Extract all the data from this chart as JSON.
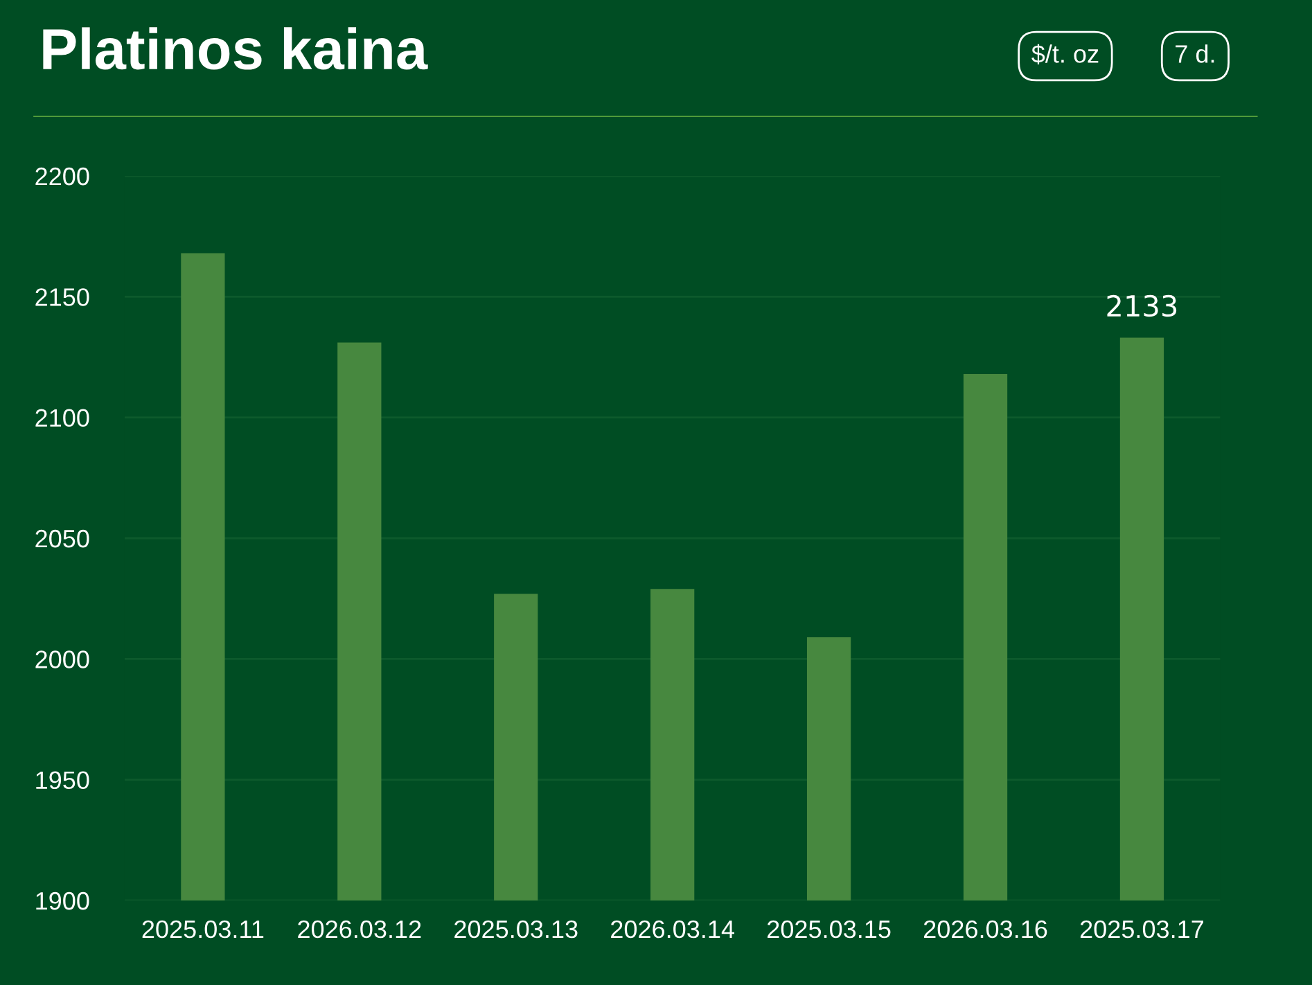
{
  "chart_data": {
    "type": "bar",
    "title": "Platinos kaina",
    "annotations": [
      "$/t. oz",
      "7 d."
    ],
    "categories": [
      "2025.03.11",
      "2026.03.12",
      "2025.03.13",
      "2026.03.14",
      "2025.03.15",
      "2026.03.16",
      "2025.03.17"
    ],
    "values": [
      2168,
      2131,
      2027,
      2029,
      2009,
      2118,
      2133
    ],
    "value_labels": [
      null,
      null,
      null,
      null,
      null,
      null,
      "2133"
    ],
    "color": "#47883f",
    "ylim": [
      1900,
      2200
    ],
    "yticks": [
      1900,
      1950,
      2000,
      2050,
      2100,
      2150,
      2200
    ],
    "grid": "y"
  }
}
